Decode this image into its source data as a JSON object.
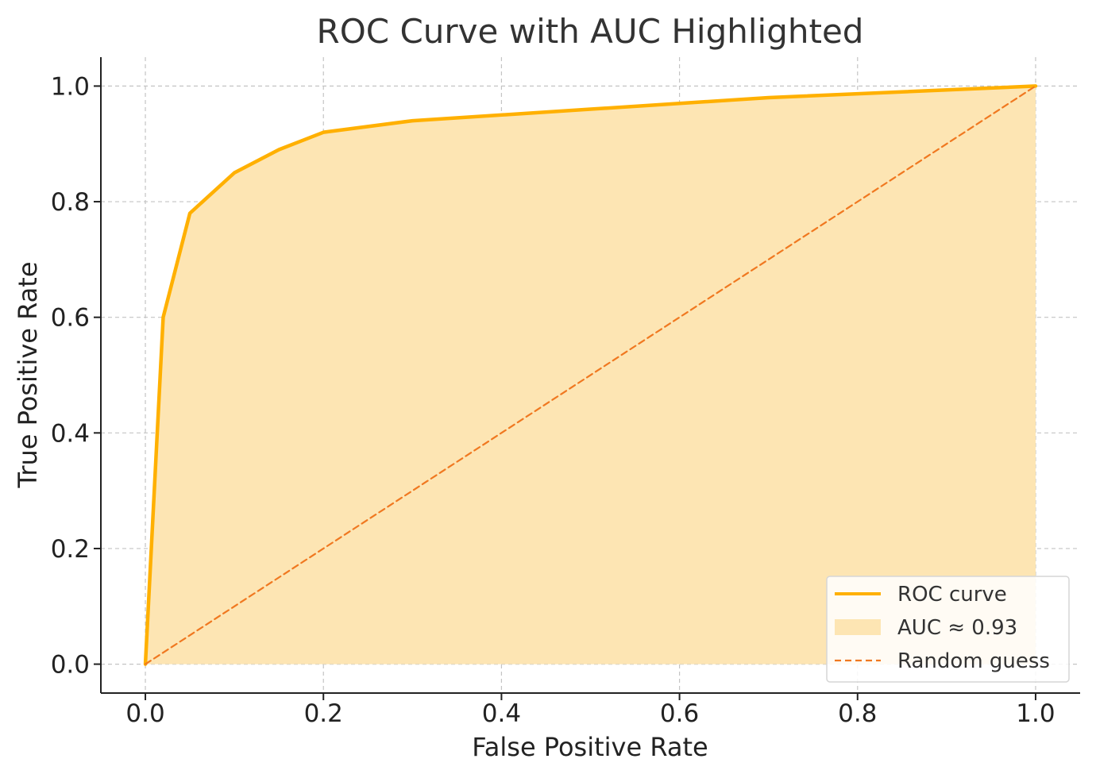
{
  "chart_data": {
    "type": "line",
    "title": "ROC Curve with AUC Highlighted",
    "xlabel": "False Positive Rate",
    "ylabel": "True Positive Rate",
    "xlim": [
      -0.05,
      1.05
    ],
    "ylim": [
      -0.05,
      1.05
    ],
    "xticks": [
      "0.0",
      "0.2",
      "0.4",
      "0.6",
      "0.8",
      "1.0"
    ],
    "yticks": [
      "0.0",
      "0.2",
      "0.4",
      "0.6",
      "0.8",
      "1.0"
    ],
    "grid": true,
    "legend_position": "lower-right",
    "series": [
      {
        "name": "ROC curve",
        "style": "solid",
        "color": "#FFB000",
        "x": [
          0.0,
          0.02,
          0.05,
          0.1,
          0.15,
          0.2,
          0.3,
          0.5,
          0.7,
          1.0
        ],
        "y": [
          0.0,
          0.6,
          0.78,
          0.85,
          0.89,
          0.92,
          0.94,
          0.96,
          0.98,
          1.0
        ]
      },
      {
        "name": "Random guess",
        "style": "dashed",
        "color": "#F07820",
        "x": [
          0.0,
          1.0
        ],
        "y": [
          0.0,
          1.0
        ]
      }
    ],
    "area": {
      "name": "AUC ≈ 0.93",
      "auc": 0.93,
      "color": "#FDE5B3"
    }
  }
}
